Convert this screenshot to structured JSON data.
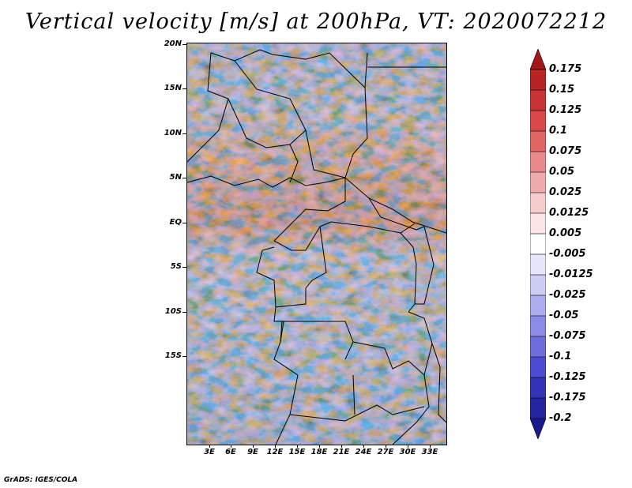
{
  "title": "Vertical velocity [m/s] at 200hPa, VT: 2020072212",
  "footer": "GrADS: IGES/COLA",
  "lat_axis": [
    "20N",
    "15N",
    "10N",
    "5N",
    "EQ",
    "5S",
    "10S",
    "15S"
  ],
  "lon_axis": [
    "3E",
    "6E",
    "9E",
    "12E",
    "15E",
    "18E",
    "21E",
    "24E",
    "27E",
    "30E",
    "33E"
  ],
  "colorbar": {
    "labels": [
      "0.175",
      "0.15",
      "0.125",
      "0.1",
      "0.075",
      "0.05",
      "0.025",
      "0.0125",
      "0.005",
      "-0.005",
      "-0.0125",
      "-0.025",
      "-0.05",
      "-0.075",
      "-0.1",
      "-0.125",
      "-0.175",
      "-0.2"
    ],
    "colors": [
      "#a01818",
      "#b82424",
      "#c83434",
      "#d84848",
      "#e06666",
      "#e88a8a",
      "#f0acac",
      "#f6cccc",
      "#fae6e6",
      "#ffffff",
      "#e6e6fa",
      "#ccccf4",
      "#acacee",
      "#8c8ce8",
      "#6c6cdc",
      "#4c4cd0",
      "#3434b8",
      "#2424a0",
      "#1a1a90"
    ]
  }
}
